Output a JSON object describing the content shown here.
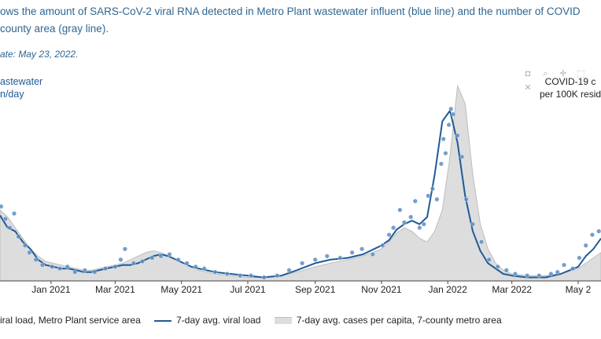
{
  "caption": {
    "line1": "ows the amount of SARS-CoV-2 viral RNA detected in Metro Plant wastewater influent (blue line) and the number of COVID",
    "line2": "county area (gray line).",
    "update": "ate: May 23, 2022."
  },
  "axis_left": {
    "line1": "astewater",
    "line2": "n/day"
  },
  "axis_right": {
    "line1": "COVID-19 c",
    "line2": "per 100K resid"
  },
  "toolbar": {
    "icons": [
      "camera-icon",
      "zoom-icon",
      "pan-icon",
      "box-select-icon",
      "reset-icon"
    ],
    "glyphs": [
      "◘",
      "⌕",
      "✛",
      "⬚",
      "✕"
    ]
  },
  "legend": {
    "points_label": "iral load, Metro Plant service area",
    "line_label": "7-day avg. viral load",
    "area_label": "7-day avg. cases per capita, 7-county metro area"
  },
  "colors": {
    "line": "#1f5a96",
    "points": "#5b8ec4",
    "area_fill": "#dddddd",
    "area_stroke": "#bdbdbd",
    "text": "#2f6690"
  },
  "chart_data": {
    "type": "line",
    "x_range": [
      "2020-11-15",
      "2022-05-22"
    ],
    "x_ticks": [
      {
        "date": "2021-01-01",
        "label": "Jan 2021"
      },
      {
        "date": "2021-03-01",
        "label": "Mar 2021"
      },
      {
        "date": "2021-05-01",
        "label": "May 2021"
      },
      {
        "date": "2021-07-01",
        "label": "Jul 2021"
      },
      {
        "date": "2021-09-01",
        "label": "Sep 2021"
      },
      {
        "date": "2021-11-01",
        "label": "Nov 2021"
      },
      {
        "date": "2022-01-01",
        "label": "Jan 2022"
      },
      {
        "date": "2022-03-01",
        "label": "Mar 2022"
      },
      {
        "date": "2022-05-01",
        "label": "May 2"
      }
    ],
    "y_left_range": [
      0,
      100
    ],
    "y_right_range": [
      0,
      100
    ],
    "series": [
      {
        "type": "line",
        "x": [
          "2020-11-15",
          "2020-11-22",
          "2020-11-29",
          "2020-12-06",
          "2020-12-13",
          "2020-12-20",
          "2020-12-27",
          "2021-01-03",
          "2021-01-10",
          "2021-01-17",
          "2021-01-24",
          "2021-01-31",
          "2021-02-07",
          "2021-02-14",
          "2021-02-21",
          "2021-03-01",
          "2021-03-08",
          "2021-03-15",
          "2021-03-22",
          "2021-03-29",
          "2021-04-05",
          "2021-04-12",
          "2021-04-19",
          "2021-04-26",
          "2021-05-03",
          "2021-05-10",
          "2021-05-17",
          "2021-05-24",
          "2021-06-01",
          "2021-06-15",
          "2021-07-01",
          "2021-07-15",
          "2021-08-01",
          "2021-08-15",
          "2021-09-01",
          "2021-09-15",
          "2021-10-01",
          "2021-10-15",
          "2021-11-01",
          "2021-11-08",
          "2021-11-15",
          "2021-11-22",
          "2021-11-29",
          "2021-12-06",
          "2021-12-13",
          "2021-12-20",
          "2021-12-27",
          "2022-01-03",
          "2022-01-10",
          "2022-01-17",
          "2022-01-24",
          "2022-01-31",
          "2022-02-07",
          "2022-02-14",
          "2022-02-21",
          "2022-03-01",
          "2022-03-15",
          "2022-04-01",
          "2022-04-15",
          "2022-05-01",
          "2022-05-08",
          "2022-05-15",
          "2022-05-22"
        ],
        "y": [
          37,
          30,
          28,
          22,
          18,
          12,
          9,
          8,
          7,
          7,
          6,
          5,
          5,
          6,
          7,
          8,
          9,
          9,
          10,
          12,
          14,
          15,
          14,
          12,
          10,
          8,
          7,
          6,
          5,
          4,
          3,
          2,
          3,
          6,
          10,
          12,
          13,
          15,
          20,
          23,
          29,
          32,
          34,
          32,
          36,
          60,
          90,
          96,
          78,
          48,
          28,
          17,
          10,
          7,
          4,
          3,
          2,
          2,
          4,
          8,
          14,
          18,
          24
        ]
      },
      {
        "type": "area",
        "x": [
          "2020-11-15",
          "2020-11-22",
          "2020-11-29",
          "2020-12-06",
          "2020-12-13",
          "2020-12-20",
          "2020-12-27",
          "2021-01-03",
          "2021-01-10",
          "2021-01-17",
          "2021-01-24",
          "2021-01-31",
          "2021-02-07",
          "2021-02-14",
          "2021-02-21",
          "2021-03-01",
          "2021-03-08",
          "2021-03-15",
          "2021-03-22",
          "2021-03-29",
          "2021-04-05",
          "2021-04-12",
          "2021-04-19",
          "2021-04-26",
          "2021-05-03",
          "2021-05-10",
          "2021-05-17",
          "2021-05-24",
          "2021-06-01",
          "2021-06-15",
          "2021-07-01",
          "2021-07-15",
          "2021-08-01",
          "2021-08-15",
          "2021-09-01",
          "2021-09-15",
          "2021-10-01",
          "2021-10-15",
          "2021-11-01",
          "2021-11-08",
          "2021-11-15",
          "2021-11-22",
          "2021-11-29",
          "2021-12-06",
          "2021-12-13",
          "2021-12-20",
          "2021-12-27",
          "2022-01-03",
          "2022-01-10",
          "2022-01-17",
          "2022-01-24",
          "2022-01-31",
          "2022-02-07",
          "2022-02-14",
          "2022-02-21",
          "2022-03-01",
          "2022-03-15",
          "2022-04-01",
          "2022-04-15",
          "2022-05-01",
          "2022-05-08",
          "2022-05-15",
          "2022-05-22"
        ],
        "y": [
          40,
          36,
          30,
          24,
          18,
          14,
          11,
          10,
          9,
          8,
          7,
          6,
          6,
          7,
          8,
          9,
          10,
          12,
          14,
          16,
          17,
          16,
          14,
          12,
          10,
          8,
          6,
          5,
          4,
          3,
          2,
          2,
          3,
          5,
          8,
          10,
          12,
          14,
          18,
          22,
          27,
          30,
          28,
          24,
          22,
          28,
          40,
          70,
          110,
          100,
          60,
          32,
          18,
          10,
          6,
          4,
          3,
          3,
          4,
          7,
          10,
          13,
          16
        ]
      },
      {
        "type": "scatter",
        "x": [
          "2020-11-16",
          "2020-11-20",
          "2020-11-24",
          "2020-11-28",
          "2020-12-02",
          "2020-12-08",
          "2020-12-12",
          "2020-12-18",
          "2020-12-24",
          "2021-01-02",
          "2021-01-09",
          "2021-01-16",
          "2021-01-23",
          "2021-02-01",
          "2021-02-10",
          "2021-02-20",
          "2021-03-01",
          "2021-03-06",
          "2021-03-10",
          "2021-03-18",
          "2021-03-26",
          "2021-04-04",
          "2021-04-12",
          "2021-04-20",
          "2021-04-28",
          "2021-05-06",
          "2021-05-14",
          "2021-05-22",
          "2021-06-01",
          "2021-06-12",
          "2021-06-24",
          "2021-07-04",
          "2021-07-16",
          "2021-07-28",
          "2021-08-08",
          "2021-08-20",
          "2021-09-01",
          "2021-09-12",
          "2021-09-24",
          "2021-10-05",
          "2021-10-14",
          "2021-10-24",
          "2021-11-02",
          "2021-11-08",
          "2021-11-12",
          "2021-11-18",
          "2021-11-22",
          "2021-11-28",
          "2021-12-02",
          "2021-12-06",
          "2021-12-10",
          "2021-12-14",
          "2021-12-18",
          "2021-12-22",
          "2021-12-26",
          "2021-12-28",
          "2021-12-30",
          "2022-01-02",
          "2022-01-04",
          "2022-01-06",
          "2022-01-10",
          "2022-01-14",
          "2022-01-18",
          "2022-01-24",
          "2022-02-01",
          "2022-02-08",
          "2022-02-16",
          "2022-02-24",
          "2022-03-04",
          "2022-03-15",
          "2022-03-26",
          "2022-04-06",
          "2022-04-12",
          "2022-04-18",
          "2022-04-26",
          "2022-05-02",
          "2022-05-08",
          "2022-05-14",
          "2022-05-20"
        ],
        "y": [
          42,
          35,
          30,
          38,
          25,
          20,
          16,
          12,
          9,
          8,
          7,
          8,
          5,
          6,
          5,
          7,
          8,
          12,
          18,
          10,
          11,
          13,
          14,
          15,
          12,
          10,
          8,
          7,
          5,
          4,
          3,
          3,
          2,
          3,
          6,
          10,
          12,
          14,
          13,
          16,
          18,
          15,
          20,
          26,
          30,
          40,
          33,
          36,
          45,
          30,
          32,
          48,
          52,
          46,
          66,
          80,
          72,
          88,
          97,
          94,
          82,
          70,
          46,
          32,
          22,
          12,
          8,
          6,
          4,
          3,
          3,
          4,
          5,
          9,
          7,
          13,
          20,
          26,
          28
        ]
      }
    ]
  }
}
